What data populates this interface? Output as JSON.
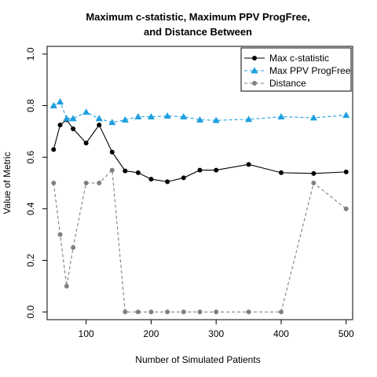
{
  "chart_data": {
    "type": "line",
    "title_line1": "Maximum c-statistic, Maximum PPV ProgFree,",
    "title_line2": "and Distance Between",
    "xlabel": "Number of Simulated Patients",
    "ylabel": "Value of Metric",
    "xlim": [
      40,
      510
    ],
    "ylim": [
      -0.03,
      1.03
    ],
    "xticks": [
      100,
      200,
      300,
      400,
      500
    ],
    "yticks": [
      0.0,
      0.2,
      0.4,
      0.6,
      0.8,
      1.0
    ],
    "ytick_labels": [
      "0.0",
      "0.2",
      "0.4",
      "0.6",
      "0.8",
      "1.0"
    ],
    "grid": false,
    "legend_position": "top-right",
    "x": [
      50,
      60,
      70,
      80,
      100,
      120,
      140,
      160,
      180,
      200,
      225,
      250,
      275,
      300,
      350,
      400,
      450,
      500
    ],
    "series": [
      {
        "name": "Max c-statistic",
        "color": "#000000",
        "dash": "none",
        "marker": "circle",
        "values": [
          0.63,
          0.725,
          0.745,
          0.71,
          0.655,
          0.725,
          0.62,
          0.547,
          0.54,
          0.515,
          0.505,
          0.52,
          0.55,
          0.55,
          0.572,
          0.54,
          0.537,
          0.543
        ]
      },
      {
        "name": "Max PPV ProgFree",
        "color": "#1E9FE0",
        "dash": "dashed",
        "marker": "triangle",
        "values": [
          0.8,
          0.815,
          0.75,
          0.75,
          0.775,
          0.75,
          0.735,
          0.745,
          0.757,
          0.757,
          0.76,
          0.757,
          0.745,
          0.743,
          0.747,
          0.757,
          0.753,
          0.763
        ]
      },
      {
        "name": "Distance",
        "color": "#808080",
        "dash": "dashed",
        "marker": "circle",
        "values": [
          0.5,
          0.3,
          0.1,
          0.25,
          0.5,
          0.5,
          0.55,
          0.0,
          0.0,
          0.0,
          0.0,
          0.0,
          0.0,
          0.0,
          0.0,
          0.0,
          0.5,
          0.4
        ]
      }
    ]
  }
}
